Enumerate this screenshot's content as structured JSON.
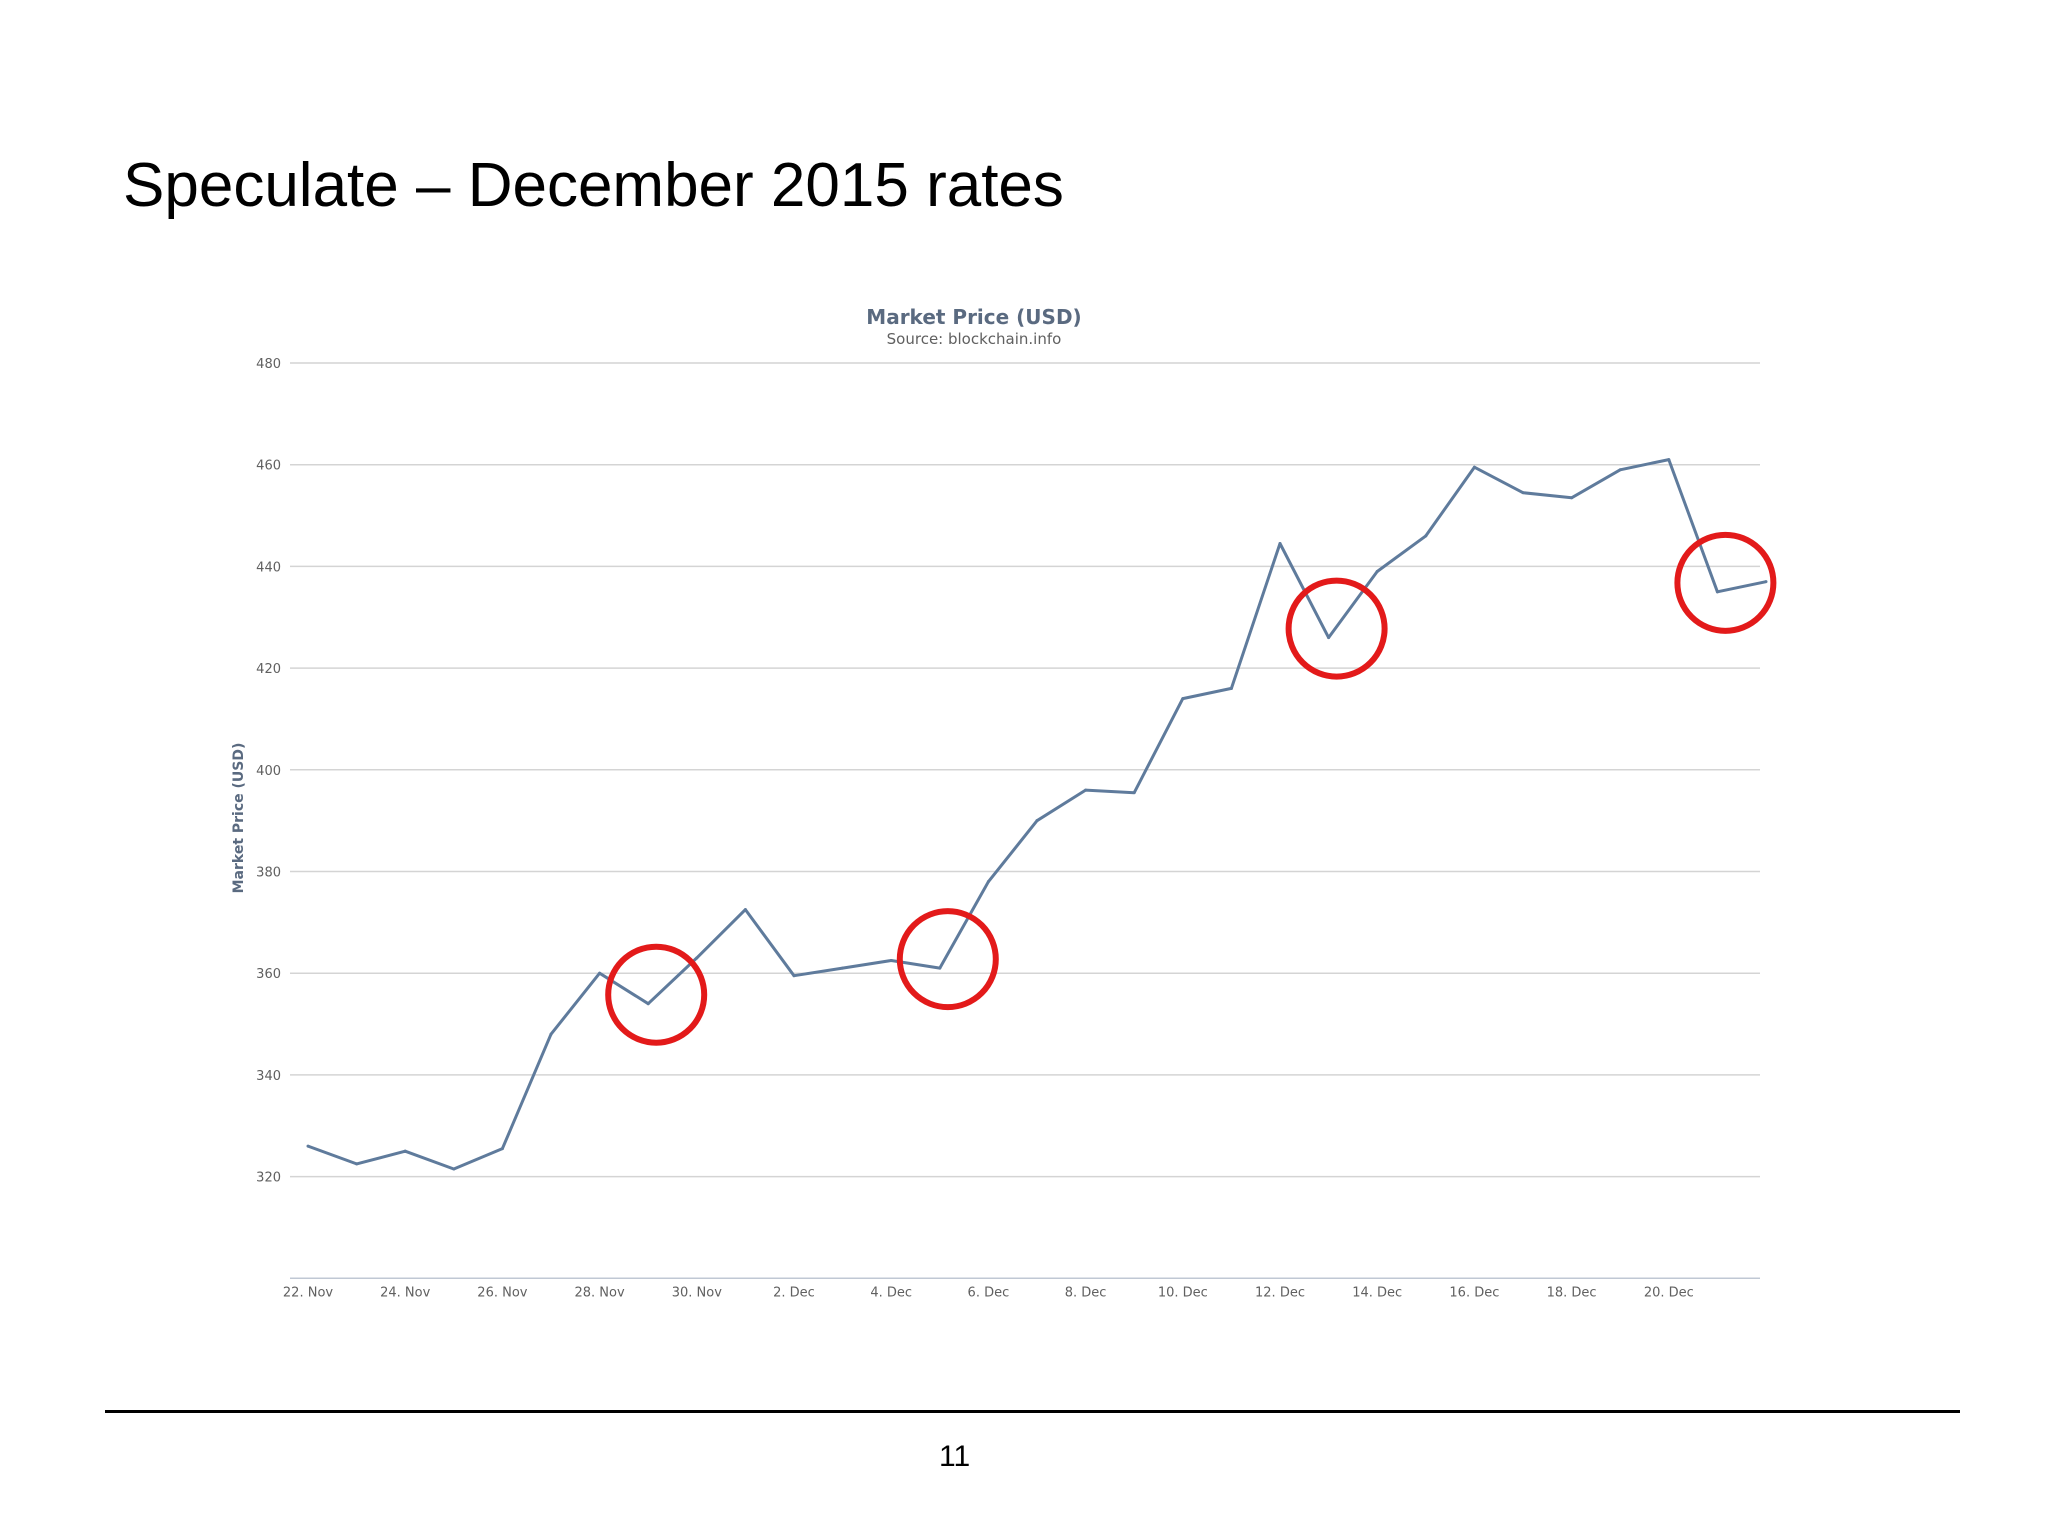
{
  "slide": {
    "title": "Speculate – December 2015 rates",
    "page_number": "11"
  },
  "colors": {
    "series": "#5f7b9c",
    "grid": "#d4d4d4",
    "axis_text": "#606060",
    "title_text": "#5a6a80",
    "highlight_circle": "#e31a1a"
  },
  "chart_data": {
    "type": "line",
    "title": "Market Price (USD)",
    "subtitle": "Source: blockchain.info",
    "ylabel": "Market Price (USD)",
    "xlabel": "",
    "ylim": [
      300,
      480
    ],
    "yticks": [
      320,
      340,
      360,
      380,
      400,
      420,
      440,
      460,
      480
    ],
    "x_tick_labels": [
      "22. Nov",
      "24. Nov",
      "26. Nov",
      "28. Nov",
      "30. Nov",
      "2. Dec",
      "4. Dec",
      "6. Dec",
      "8. Dec",
      "10. Dec",
      "12. Dec",
      "14. Dec",
      "16. Dec",
      "18. Dec",
      "20. Dec"
    ],
    "grid": true,
    "legend": "none",
    "series": [
      {
        "x": [
          "2015-11-22",
          "2015-11-23",
          "2015-11-24",
          "2015-11-25",
          "2015-11-26",
          "2015-11-27",
          "2015-11-28",
          "2015-11-29",
          "2015-11-30",
          "2015-12-01",
          "2015-12-02",
          "2015-12-03",
          "2015-12-04",
          "2015-12-05",
          "2015-12-06",
          "2015-12-07",
          "2015-12-08",
          "2015-12-09",
          "2015-12-10",
          "2015-12-11",
          "2015-12-12",
          "2015-12-13",
          "2015-12-14",
          "2015-12-15",
          "2015-12-16",
          "2015-12-17",
          "2015-12-18",
          "2015-12-19",
          "2015-12-20",
          "2015-12-21",
          "2015-12-22"
        ],
        "values": [
          326,
          322.5,
          325,
          321.5,
          325.5,
          348,
          360,
          354,
          363,
          372.5,
          359.5,
          361,
          362.5,
          361,
          378,
          390,
          396,
          395.5,
          414,
          416,
          444.5,
          426,
          439,
          446,
          459.5,
          454.5,
          453.5,
          459,
          461,
          435,
          437
        ]
      }
    ],
    "highlighted_dates": [
      "2015-11-29",
      "2015-12-05",
      "2015-12-13",
      "2015-12-21"
    ]
  }
}
